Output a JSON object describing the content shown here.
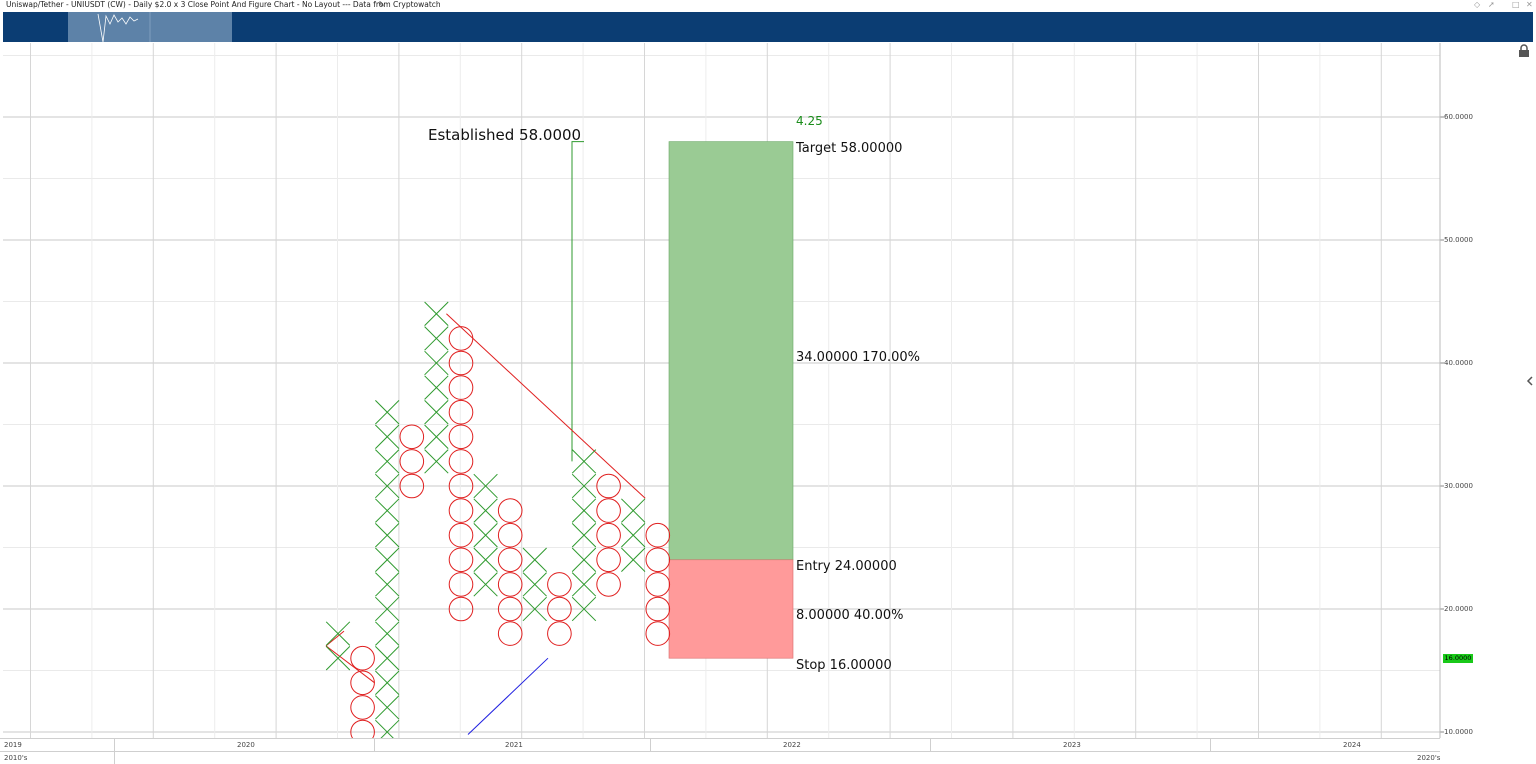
{
  "window": {
    "title": "Uniswap/Tether - UNIUSDT (CW) - Daily $2.0 x 3 Close Point And Figure Chart - No Layout --- Data from Cryptowatch",
    "edit_icon": "pencil-icon",
    "controls": [
      "diamond-icon",
      "pin-icon",
      "restore-icon",
      "close-icon"
    ]
  },
  "toolbar": {
    "lock_icon": "lock-icon",
    "collapse_icon": "chevron-left-icon"
  },
  "price_badge": "16.0000",
  "y_axis_labels": [
    "60.0000",
    "50.0000",
    "40.0000",
    "30.0000",
    "20.0000",
    "10.0000"
  ],
  "x_axis": {
    "years": [
      "2019",
      "2020",
      "2021",
      "2022",
      "2023",
      "2024"
    ],
    "decades": [
      "2010's",
      "2020's"
    ]
  },
  "annotations": {
    "established": "Established 58.0000",
    "ratio": "4.25",
    "target": "Target   58.00000",
    "reward": "34.00000   170.00%",
    "entry": "Entry   24.00000",
    "risk": "8.00000   40.00%",
    "stop": "Stop   16.00000"
  },
  "colors": {
    "x_mark": "#2e9a2e",
    "o_mark": "#e02020",
    "reward_box": "#9acb94",
    "risk_box": "#ff9a9a",
    "nav_bar": "#0b3d73",
    "trend_down": "#e02020",
    "trend_up": "#2020e0",
    "badge": "#19c919"
  },
  "chart_data": {
    "type": "point-and-figure",
    "box_size": 2.0,
    "reversal": 3,
    "ylim": [
      10,
      68
    ],
    "columns": [
      {
        "type": "X",
        "low": 16,
        "high": 18
      },
      {
        "type": "O",
        "low": 10,
        "high": 16
      },
      {
        "type": "X",
        "low": 10,
        "high": 36
      },
      {
        "type": "O",
        "low": 30,
        "high": 34
      },
      {
        "type": "X",
        "low": 32,
        "high": 44
      },
      {
        "type": "O",
        "low": 20,
        "high": 42
      },
      {
        "type": "X",
        "low": 22,
        "high": 30
      },
      {
        "type": "O",
        "low": 18,
        "high": 28
      },
      {
        "type": "X",
        "low": 20,
        "high": 24
      },
      {
        "type": "O",
        "low": 18,
        "high": 22
      },
      {
        "type": "X",
        "low": 20,
        "high": 32
      },
      {
        "type": "O",
        "low": 22,
        "high": 30
      },
      {
        "type": "X",
        "low": 24,
        "high": 28
      },
      {
        "type": "O",
        "low": 18,
        "high": 26
      }
    ],
    "target": 58,
    "entry": 24,
    "stop": 16,
    "reward": 34,
    "reward_pct": 170,
    "risk": 8,
    "risk_pct": 40,
    "risk_reward_ratio": 4.25
  }
}
